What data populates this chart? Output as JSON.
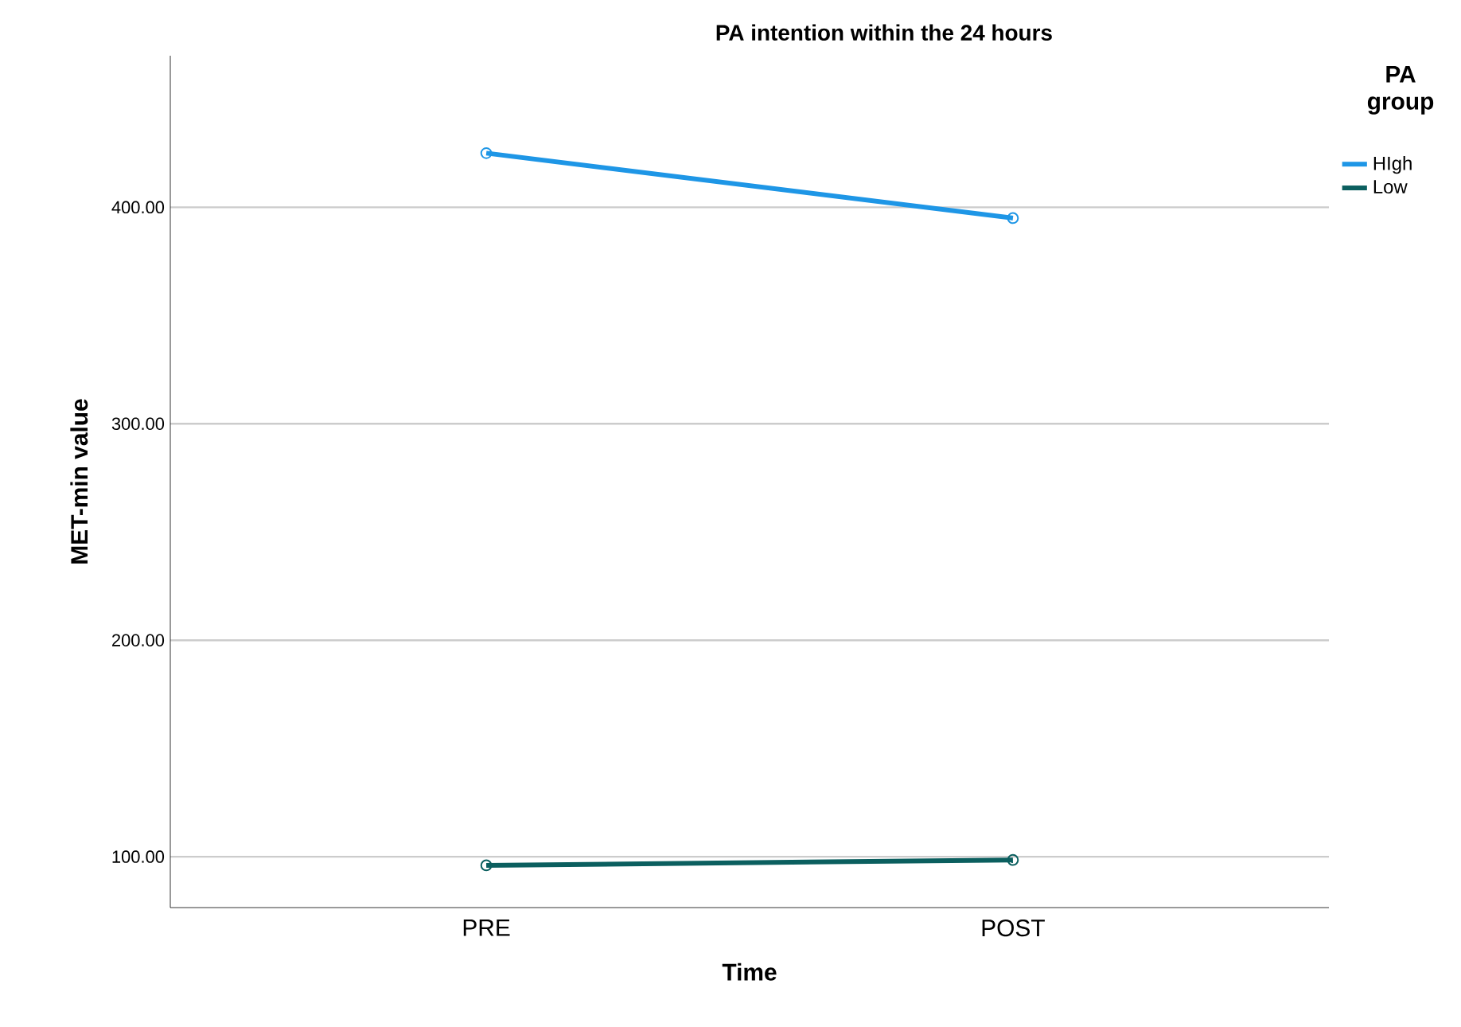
{
  "chart_data": {
    "type": "line",
    "title": "PA intention within the 24 hours",
    "xlabel": "Time",
    "ylabel": "MET-min value",
    "legend_title": "PA group",
    "categories": [
      "PRE",
      "POST"
    ],
    "series": [
      {
        "name": "HIgh",
        "color": "#1e96e6",
        "values": [
          425,
          395
        ]
      },
      {
        "name": "Low",
        "color": "#0b5f5f",
        "values": [
          96,
          98.5
        ]
      }
    ],
    "ylim": [
      76.5,
      470
    ],
    "yticks": [
      {
        "value": 100,
        "label": "100.00"
      },
      {
        "value": 200,
        "label": "200.00"
      },
      {
        "value": 300,
        "label": "300.00"
      },
      {
        "value": 400,
        "label": "400.00"
      }
    ],
    "grid": "y",
    "legend": "top right",
    "marker": "circle",
    "line_style": "solid"
  }
}
